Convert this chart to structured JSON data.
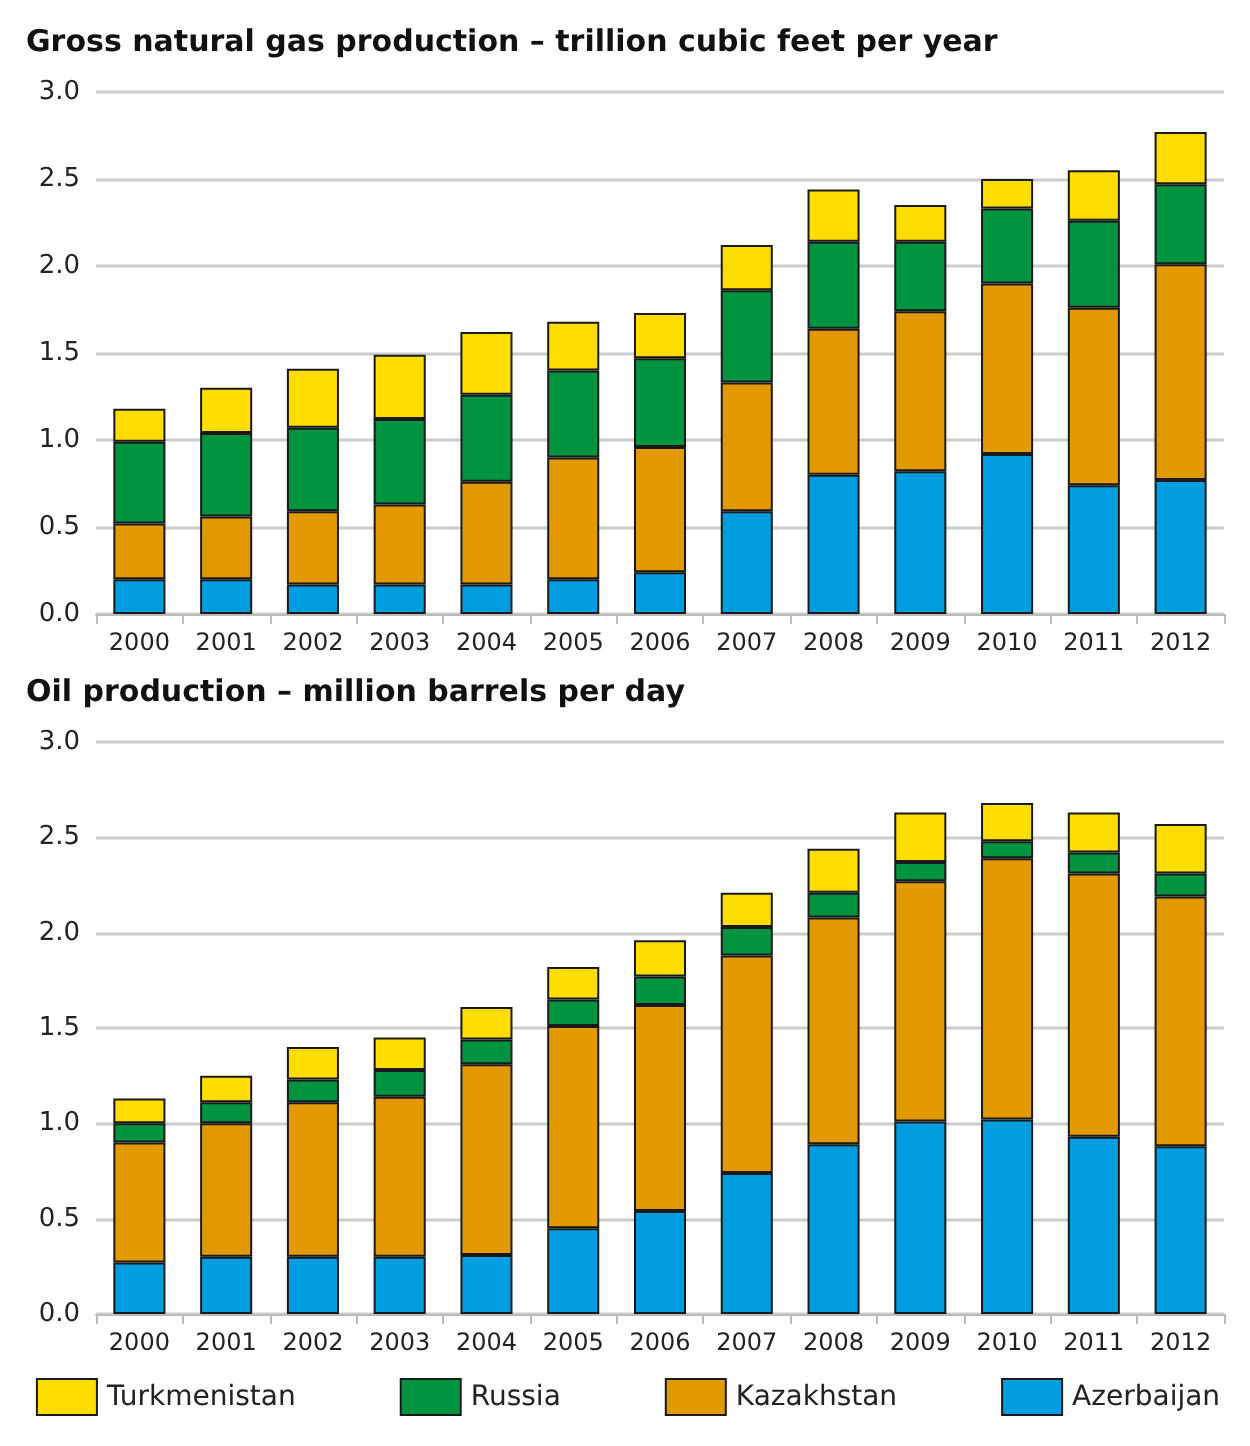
{
  "chart_data": [
    {
      "type": "bar",
      "title": "Gross natural gas production – trillion cubic feet per year",
      "stacked": true,
      "grid": "y",
      "legend": false,
      "categories": [
        "2000",
        "2001",
        "2002",
        "2003",
        "2004",
        "2005",
        "2006",
        "2007",
        "2008",
        "2009",
        "2010",
        "2011",
        "2012"
      ],
      "ylim": [
        0,
        3
      ],
      "yticks": [
        {
          "value": 0,
          "label": "0.0"
        },
        {
          "value": 0.5,
          "label": "0.5"
        },
        {
          "value": 1,
          "label": "1.0"
        },
        {
          "value": 1.5,
          "label": "1.5"
        },
        {
          "value": 2,
          "label": "2.0"
        },
        {
          "value": 2.5,
          "label": "2.5"
        },
        {
          "value": 3,
          "label": "3.0"
        }
      ],
      "series": [
        {
          "color": "#009ee0",
          "values": [
            0.2,
            0.2,
            0.17,
            0.17,
            0.17,
            0.2,
            0.24,
            0.59,
            0.8,
            0.82,
            0.92,
            0.74,
            0.77
          ]
        },
        {
          "color": "#e39a00",
          "values": [
            0.32,
            0.36,
            0.42,
            0.46,
            0.59,
            0.7,
            0.72,
            0.74,
            0.84,
            0.92,
            0.98,
            1.02,
            1.24
          ]
        },
        {
          "color": "#009440",
          "values": [
            0.47,
            0.48,
            0.48,
            0.49,
            0.5,
            0.5,
            0.51,
            0.53,
            0.5,
            0.4,
            0.43,
            0.5,
            0.46
          ]
        },
        {
          "color": "#ffdd00",
          "values": [
            0.19,
            0.26,
            0.34,
            0.37,
            0.36,
            0.28,
            0.26,
            0.26,
            0.3,
            0.21,
            0.17,
            0.29,
            0.3
          ]
        }
      ]
    },
    {
      "type": "bar",
      "title": "Oil production – million barrels per day",
      "stacked": true,
      "grid": "y",
      "legend": "bottom",
      "categories": [
        "2000",
        "2001",
        "2002",
        "2003",
        "2004",
        "2005",
        "2006",
        "2007",
        "2008",
        "2009",
        "2010",
        "2011",
        "2012"
      ],
      "ylim": [
        0,
        3
      ],
      "yticks": [
        {
          "value": 0,
          "label": "0.0"
        },
        {
          "value": 0.5,
          "label": "0.5"
        },
        {
          "value": 1,
          "label": "1.0"
        },
        {
          "value": 1.5,
          "label": "1.5"
        },
        {
          "value": 2,
          "label": "2.0"
        },
        {
          "value": 2.5,
          "label": "2.5"
        },
        {
          "value": 3,
          "label": "3.0"
        }
      ],
      "series": [
        {
          "name": "Azerbaijan",
          "color": "#009ee0",
          "values": [
            0.27,
            0.3,
            0.3,
            0.3,
            0.31,
            0.45,
            0.54,
            0.74,
            0.89,
            1.01,
            1.02,
            0.93,
            0.88
          ]
        },
        {
          "name": "Kazakhstan",
          "color": "#e39a00",
          "values": [
            0.63,
            0.7,
            0.81,
            0.84,
            1.0,
            1.06,
            1.08,
            1.14,
            1.19,
            1.26,
            1.37,
            1.38,
            1.31
          ]
        },
        {
          "name": "Russia",
          "color": "#009440",
          "values": [
            0.1,
            0.11,
            0.12,
            0.14,
            0.13,
            0.14,
            0.15,
            0.15,
            0.13,
            0.1,
            0.09,
            0.11,
            0.12
          ]
        },
        {
          "name": "Turkmenistan",
          "color": "#ffdd00",
          "values": [
            0.13,
            0.14,
            0.17,
            0.17,
            0.17,
            0.17,
            0.19,
            0.18,
            0.23,
            0.26,
            0.2,
            0.21,
            0.26
          ]
        }
      ]
    }
  ]
}
